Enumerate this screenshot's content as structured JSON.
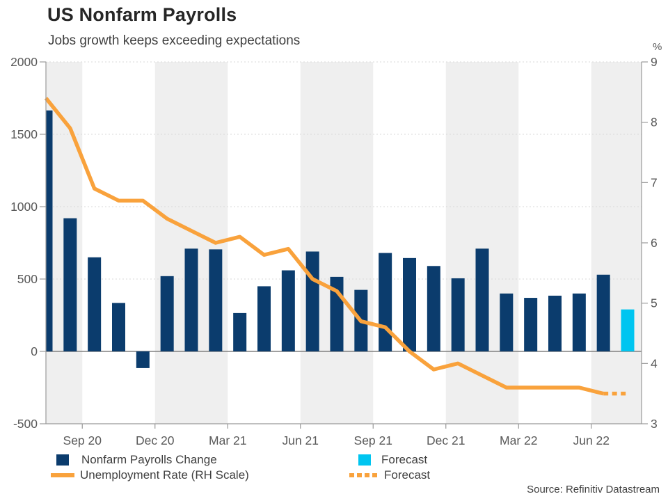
{
  "header": {
    "title": "US Nonfarm Payrolls",
    "subtitle": "Jobs growth keeps exceeding expectations"
  },
  "footer": {
    "source": "Source: Refinitiv Datastream"
  },
  "colors": {
    "navy": "#0b3c6d",
    "cyan": "#00c5f0",
    "orange": "#f9a23c",
    "band": "#efefef",
    "grid": "#d9d9d9",
    "axis": "#999999",
    "zero_line": "#808080",
    "text_dark": "#262626",
    "text_mid": "#404040",
    "text_axis": "#595959"
  },
  "legend": {
    "items": [
      {
        "label": "Nonfarm Payrolls Change",
        "swatch": "square",
        "color_key": "navy"
      },
      {
        "label": "Forecast",
        "swatch": "square",
        "color_key": "cyan"
      },
      {
        "label": "Unemployment Rate (RH Scale)",
        "swatch": "line",
        "color_key": "orange"
      },
      {
        "label": "Forecast",
        "swatch": "dotted-line",
        "color_key": "orange"
      }
    ]
  },
  "chart_data": {
    "type": "bar+line",
    "title": "US Nonfarm Payrolls",
    "subtitle": "Jobs growth keeps exceeding expectations",
    "categories": [
      "Aug 20",
      "Sep 20",
      "Oct 20",
      "Nov 20",
      "Dec 20",
      "Jan 21",
      "Feb 21",
      "Mar 21",
      "Apr 21",
      "May 21",
      "Jun 21",
      "Jul 21",
      "Aug 21",
      "Sep 21",
      "Oct 21",
      "Nov 21",
      "Dec 21",
      "Jan 22",
      "Feb 22",
      "Mar 22",
      "Apr 22",
      "May 22",
      "Jun 22",
      "Jul 22",
      "Aug 22"
    ],
    "series": [
      {
        "name": "Nonfarm Payrolls Change",
        "type": "bar",
        "axis": "left",
        "color_key": "navy",
        "values": [
          1665,
          920,
          650,
          335,
          -115,
          520,
          710,
          705,
          265,
          450,
          560,
          690,
          515,
          425,
          680,
          645,
          590,
          505,
          710,
          400,
          370,
          385,
          400,
          530,
          null
        ]
      },
      {
        "name": "Forecast",
        "type": "bar",
        "axis": "left",
        "color_key": "cyan",
        "values": [
          null,
          null,
          null,
          null,
          null,
          null,
          null,
          null,
          null,
          null,
          null,
          null,
          null,
          null,
          null,
          null,
          null,
          null,
          null,
          null,
          null,
          null,
          null,
          null,
          290
        ]
      },
      {
        "name": "Unemployment Rate (RH Scale)",
        "type": "line",
        "axis": "right",
        "color_key": "orange",
        "values": [
          8.4,
          7.9,
          6.9,
          6.7,
          6.7,
          6.4,
          6.2,
          6.0,
          6.1,
          5.8,
          5.9,
          5.4,
          5.2,
          4.7,
          4.6,
          4.2,
          3.9,
          4.0,
          3.8,
          3.6,
          3.6,
          3.6,
          3.6,
          3.5,
          null
        ]
      },
      {
        "name": "Forecast",
        "type": "line",
        "style": "dotted",
        "axis": "right",
        "color_key": "orange",
        "values": [
          null,
          null,
          null,
          null,
          null,
          null,
          null,
          null,
          null,
          null,
          null,
          null,
          null,
          null,
          null,
          null,
          null,
          null,
          null,
          null,
          null,
          null,
          null,
          3.5,
          3.5
        ]
      }
    ],
    "ylim_left": [
      -500,
      2000
    ],
    "ylim_right": [
      3,
      9
    ],
    "right_axis_unit": "%",
    "left_tick_values": [
      2000,
      1500,
      1000,
      500,
      0,
      -500
    ],
    "right_tick_values": [
      9,
      8,
      7,
      6,
      5,
      4,
      3
    ],
    "x_tick_labels": [
      "Sep 20",
      "Dec 20",
      "Mar 21",
      "Jun 21",
      "Sep 21",
      "Dec 21",
      "Mar 22",
      "Jun 22"
    ],
    "x_tick_month_positions": [
      1.5,
      4.5,
      7.5,
      10.5,
      13.5,
      16.5,
      19.5,
      22.5
    ],
    "background_bands": "quarterly-alternating-gray-white",
    "grid": "dashed horizontal at 2000/1500/1000/500, solid zero line",
    "legend_position": "bottom"
  }
}
